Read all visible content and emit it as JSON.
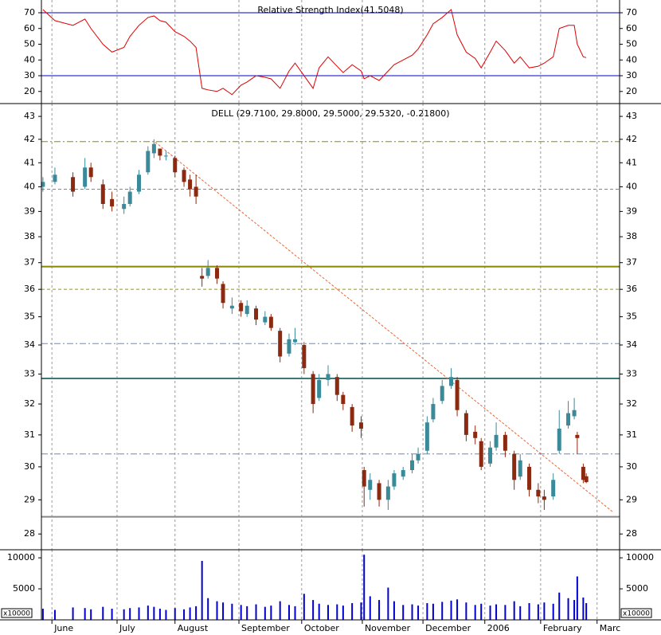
{
  "chart_data": [
    {
      "type": "line",
      "title": "Relative Strength Index(41.5048)",
      "color": "#dd0000",
      "x": [
        0,
        4,
        10,
        14,
        16,
        20,
        23,
        27,
        29,
        32,
        35,
        37,
        39,
        41,
        44,
        47,
        49,
        51,
        53,
        55,
        58,
        60,
        63,
        66,
        68,
        71,
        74,
        76,
        79,
        82,
        84,
        87,
        90,
        92,
        95,
        98,
        100,
        103,
        106,
        107,
        109,
        112,
        115,
        117,
        120,
        123,
        125,
        128,
        130,
        133,
        136,
        138,
        141,
        144,
        146,
        149,
        151,
        154,
        157,
        159,
        162,
        165,
        167,
        170,
        172,
        175,
        177,
        178,
        180,
        181
      ],
      "values": [
        72,
        65,
        62,
        66,
        60,
        50,
        45,
        48,
        55,
        62,
        67,
        68,
        65,
        64,
        58,
        55,
        52,
        48,
        22,
        21,
        20,
        22,
        18,
        24,
        26,
        30,
        29,
        28,
        22,
        33,
        38,
        30,
        22,
        35,
        42,
        36,
        32,
        37,
        33,
        28,
        30,
        27,
        33,
        37,
        40,
        43,
        47,
        56,
        63,
        67,
        72,
        56,
        45,
        41,
        35,
        45,
        52,
        46,
        38,
        42,
        35,
        36,
        38,
        42,
        60,
        62,
        62,
        50,
        42,
        41.5048
      ],
      "xlim": [
        -0.5,
        192.1
      ],
      "ylim": [
        12.3,
        78.1
      ],
      "yticks": [
        20,
        30,
        40,
        50,
        60,
        70
      ],
      "ref_lines": [
        {
          "value": 70,
          "color": "#0000cc"
        },
        {
          "value": 30,
          "color": "#0000cc"
        }
      ]
    },
    {
      "type": "candlestick",
      "title": "DELL (29.7100, 29.8000, 29.5000, 29.5320, -0.21800)",
      "x": [
        0,
        4,
        10,
        14,
        16,
        20,
        23,
        27,
        29,
        32,
        35,
        37,
        39,
        41,
        44,
        47,
        49,
        51,
        53,
        55,
        58,
        60,
        63,
        66,
        68,
        71,
        74,
        76,
        79,
        82,
        84,
        87,
        90,
        92,
        95,
        98,
        100,
        103,
        106,
        107,
        109,
        112,
        115,
        117,
        120,
        123,
        125,
        128,
        130,
        133,
        136,
        138,
        141,
        144,
        146,
        149,
        151,
        154,
        157,
        159,
        162,
        165,
        167,
        170,
        172,
        175,
        177,
        178,
        180,
        181
      ],
      "open": [
        40.0,
        40.2,
        40.4,
        40.0,
        40.8,
        40.1,
        39.5,
        39.1,
        39.3,
        39.8,
        40.6,
        41.4,
        41.6,
        41.3,
        41.2,
        40.7,
        40.3,
        40.0,
        36.5,
        36.5,
        36.8,
        36.2,
        35.3,
        35.5,
        35.1,
        35.3,
        34.8,
        35.0,
        34.5,
        33.7,
        34.1,
        34.0,
        33.0,
        32.2,
        32.8,
        32.9,
        32.3,
        31.9,
        31.4,
        29.9,
        29.3,
        29.5,
        29.0,
        29.4,
        29.7,
        29.9,
        30.2,
        30.5,
        31.5,
        32.1,
        32.6,
        32.8,
        31.7,
        31.1,
        30.8,
        30.1,
        30.6,
        31.0,
        30.4,
        29.7,
        30.0,
        29.3,
        29.1,
        29.1,
        30.5,
        31.3,
        31.6,
        31.0,
        30.0,
        29.71
      ],
      "high": [
        40.4,
        40.8,
        40.6,
        41.2,
        41.0,
        40.3,
        39.8,
        39.6,
        40.0,
        40.7,
        41.7,
        42.0,
        41.6,
        41.5,
        41.3,
        40.8,
        40.5,
        40.5,
        36.8,
        37.1,
        36.9,
        36.3,
        35.7,
        35.6,
        35.6,
        35.4,
        35.2,
        35.1,
        34.6,
        34.4,
        34.6,
        34.1,
        33.1,
        33.0,
        33.3,
        33.0,
        32.4,
        32.0,
        31.6,
        30.0,
        29.8,
        29.6,
        29.6,
        29.9,
        30.0,
        30.4,
        30.6,
        31.6,
        32.2,
        32.8,
        33.2,
        32.9,
        31.8,
        31.3,
        30.9,
        30.8,
        31.4,
        31.1,
        30.5,
        30.4,
        30.1,
        29.5,
        29.3,
        29.8,
        31.8,
        32.1,
        32.2,
        31.1,
        30.1,
        29.8
      ],
      "low": [
        39.8,
        40.1,
        39.6,
        39.9,
        40.2,
        39.1,
        39.0,
        38.9,
        39.2,
        39.7,
        40.5,
        41.2,
        41.1,
        41.1,
        40.4,
        40.0,
        39.6,
        39.3,
        36.1,
        36.4,
        36.2,
        35.3,
        35.1,
        35.0,
        35.0,
        34.7,
        34.7,
        34.5,
        33.4,
        33.6,
        34.0,
        33.0,
        31.7,
        32.1,
        32.6,
        32.1,
        31.8,
        31.1,
        30.9,
        28.8,
        29.0,
        28.8,
        28.7,
        29.3,
        29.6,
        29.8,
        30.1,
        30.4,
        31.4,
        32.0,
        32.5,
        31.6,
        30.8,
        30.7,
        29.9,
        30.0,
        30.5,
        30.3,
        29.3,
        29.6,
        29.1,
        28.9,
        28.7,
        29.0,
        30.4,
        31.2,
        31.5,
        30.4,
        29.5,
        29.5
      ],
      "close": [
        40.2,
        40.5,
        39.8,
        40.8,
        40.4,
        39.3,
        39.2,
        39.3,
        39.8,
        40.5,
        41.5,
        41.8,
        41.3,
        41.3,
        40.6,
        40.2,
        39.9,
        39.6,
        36.4,
        36.8,
        36.4,
        35.5,
        35.4,
        35.2,
        35.4,
        34.9,
        35.0,
        34.6,
        33.6,
        34.2,
        34.2,
        33.2,
        32.0,
        32.8,
        33.0,
        32.3,
        32.0,
        31.3,
        31.2,
        29.4,
        29.6,
        29.0,
        29.4,
        29.8,
        29.9,
        30.2,
        30.4,
        31.4,
        32.0,
        32.6,
        32.9,
        31.8,
        31.0,
        30.9,
        30.0,
        30.6,
        31.0,
        30.5,
        29.6,
        30.2,
        29.3,
        29.1,
        29.0,
        29.6,
        31.2,
        31.7,
        31.8,
        30.9,
        29.6,
        29.532
      ],
      "up_color": "#3a8a9a",
      "down_color": "#8b2a10",
      "xlim": [
        -0.5,
        192.1
      ],
      "ylim": [
        27.55,
        43.57
      ],
      "log_scale": true,
      "yticks": [
        28,
        29,
        30,
        31,
        32,
        33,
        34,
        35,
        36,
        37,
        38,
        39,
        40,
        41,
        42,
        43
      ],
      "ref_lines": [
        {
          "value": 41.9,
          "color": "#8b8b00",
          "style": "dashdot"
        },
        {
          "value": 39.9,
          "color": "#6688cc",
          "style": "dashed"
        },
        {
          "value": 36.85,
          "color": "#888800",
          "style": "solid"
        },
        {
          "value": 36.0,
          "color": "#999900",
          "style": "dashed"
        },
        {
          "value": 34.05,
          "color": "#6688cc",
          "style": "dashdot"
        },
        {
          "value": 32.85,
          "color": "#3a7a7a",
          "style": "solid"
        },
        {
          "value": 30.4,
          "color": "#6688cc",
          "style": "dashdot"
        },
        {
          "value": 28.5,
          "color": "#888888",
          "style": "solid"
        }
      ],
      "trendline": {
        "x": [
          37.4,
          190
        ],
        "y": [
          41.88,
          28.63
        ],
        "color": "#ee6633"
      }
    },
    {
      "type": "bar",
      "color": "#0000cc",
      "unit_label": "x10000",
      "x": [
        0,
        4,
        10,
        14,
        16,
        20,
        23,
        27,
        29,
        32,
        35,
        37,
        39,
        41,
        44,
        47,
        49,
        51,
        53,
        55,
        58,
        60,
        63,
        66,
        68,
        71,
        74,
        76,
        79,
        82,
        84,
        87,
        90,
        92,
        95,
        98,
        100,
        103,
        106,
        107,
        109,
        112,
        115,
        117,
        120,
        123,
        125,
        128,
        130,
        133,
        136,
        138,
        141,
        144,
        146,
        149,
        151,
        154,
        157,
        159,
        162,
        165,
        167,
        170,
        172,
        175,
        177,
        178,
        180,
        181
      ],
      "values": [
        1800,
        1600,
        2000,
        1900,
        1700,
        2100,
        1800,
        1700,
        1900,
        2000,
        2300,
        2100,
        1800,
        1600,
        1900,
        1700,
        2000,
        2200,
        9500,
        3500,
        3000,
        2800,
        2600,
        2400,
        2200,
        2500,
        2100,
        2300,
        3000,
        2400,
        2200,
        4200,
        3200,
        2600,
        2400,
        2500,
        2300,
        2700,
        2800,
        10500,
        3800,
        3200,
        5200,
        3000,
        2400,
        2500,
        2300,
        2700,
        2600,
        2900,
        3100,
        3300,
        2800,
        2400,
        2600,
        2300,
        2500,
        2400,
        3000,
        2200,
        2700,
        2500,
        2800,
        2600,
        4400,
        3500,
        3200,
        7000,
        3600,
        2700
      ],
      "xlim": [
        -0.5,
        192.1
      ],
      "ylim": [
        0,
        11300
      ],
      "yticks": [
        5000,
        10000
      ],
      "xticks": [
        {
          "value": 3,
          "label": "June"
        },
        {
          "value": 24.7,
          "label": "July"
        },
        {
          "value": 44,
          "label": "August"
        },
        {
          "value": 65.3,
          "label": "September"
        },
        {
          "value": 86.2,
          "label": "October"
        },
        {
          "value": 106.4,
          "label": "November"
        },
        {
          "value": 126.6,
          "label": "December"
        },
        {
          "value": 147.2,
          "label": "2006"
        },
        {
          "value": 165.8,
          "label": "February"
        },
        {
          "value": 184.6,
          "label": "Marc"
        }
      ]
    }
  ]
}
